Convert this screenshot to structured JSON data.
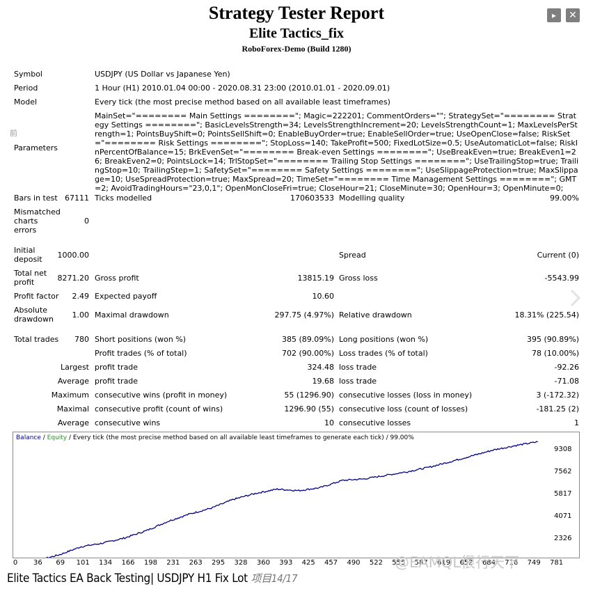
{
  "header": {
    "title": "Strategy Tester Report",
    "ea_name": "Elite Tactics_fix",
    "server": "RoboForex-Demo (Build 1280)"
  },
  "controls": {
    "play": "▸",
    "close": "✕"
  },
  "side_marks": {
    "left": "前"
  },
  "info": {
    "symbol_label": "Symbol",
    "symbol": "USDJPY (US Dollar vs Japanese Yen)",
    "period_label": "Period",
    "period": "1 Hour (H1) 2010.01.04 00:00 - 2020.08.31 23:00 (2010.01.01 - 2020.09.01)",
    "model_label": "Model",
    "model": "Every tick (the most precise method based on all available least timeframes)",
    "parameters_label": "Parameters",
    "parameters": "MainSet=\"======== Main Settings ========\"; Magic=222201; CommentOrders=\"\"; StrategySet=\"======== Strategy Settings ========\"; BasicLevelsStrength=34; LevelsStrengthIncrement=20; LevelsStrengthCount=1; MaxLevelsPerStrength=1; PointsBuyShift=0; PointsSellShift=0; EnableBuyOrder=true; EnableSellOrder=true; UseOpenClose=false; RiskSet=\"======== Risk Settings ========\"; StopLoss=140; TakeProfit=500; FixedLotSize=0.5; UseAutomaticLot=false; RiskInPercentOfBalance=15; BrkEvenSet=\"======== Break-even Settings ========\"; UseBreakEven=true; BreakEven1=26; BreakEven2=0; PointsLock=14; TrlStopSet=\"======== Trailing Stop Settings ========\"; UseTrailingStop=true; TrailingStop=10; TrailingStep=1; SafetySet=\"======== Safety Settings ========\"; UseSlippageProtection=true; MaxSlippage=10; UseSpreadProtection=true; MaxSpread=20; TimeSet=\"======== Time Management Settings ========\"; GMT=2; AvoidTradingHours=\"23,0,1\"; OpenMonCloseFri=true; CloseHour=21; CloseMinute=30; OpenHour=3; OpenMinute=0;"
  },
  "stats": {
    "bars_label": "Bars in test",
    "bars": "67111",
    "ticks_label": "Ticks modelled",
    "ticks": "170603533",
    "quality_label": "Modelling quality",
    "quality": "99.00%",
    "mismatch_label_1": "Mismatched",
    "mismatch_label_2": "charts",
    "mismatch_label_3": "errors",
    "mismatch": "0",
    "deposit_label_1": "Initial",
    "deposit_label_2": "deposit",
    "deposit": "1000.00",
    "spread_label": "Spread",
    "spread": "Current (0)",
    "net_label_1": "Total net",
    "net_label_2": "profit",
    "net": "8271.20",
    "gross_profit_label": "Gross profit",
    "gross_profit": "13815.19",
    "gross_loss_label": "Gross loss",
    "gross_loss": "-5543.99",
    "pf_label": "Profit factor",
    "pf": "2.49",
    "ep_label": "Expected payoff",
    "ep": "10.60",
    "abs_dd_label_1": "Absolute",
    "abs_dd_label_2": "drawdown",
    "abs_dd": "1.00",
    "max_dd_label": "Maximal drawdown",
    "max_dd": "297.75 (4.97%)",
    "rel_dd_label": "Relative drawdown",
    "rel_dd": "18.31% (225.54)",
    "total_trades_label": "Total trades",
    "total_trades": "780",
    "short_label": "Short positions (won %)",
    "short": "385 (89.09%)",
    "long_label": "Long positions (won %)",
    "long": "395 (90.89%)",
    "pt_label": "Profit trades (% of total)",
    "pt": "702 (90.00%)",
    "lt_label": "Loss trades (% of total)",
    "lt": "78 (10.00%)",
    "largest_label": "Largest",
    "profit_trade_label": "profit trade",
    "largest_profit": "324.48",
    "loss_trade_label": "loss trade",
    "largest_loss": "-92.26",
    "average_label": "Average",
    "average_profit": "19.68",
    "average_loss": "-71.08",
    "maximum_label": "Maximum",
    "cw_money_label": "consecutive wins (profit in money)",
    "cw_money": "55 (1296.90)",
    "cl_money_label": "consecutive losses (loss in money)",
    "cl_money": "3 (-172.32)",
    "maximal_label": "Maximal",
    "cp_count_label": "consecutive profit (count of wins)",
    "cp_count": "1296.90 (55)",
    "cl_count_label": "consecutive loss (count of losses)",
    "cl_count": "-181.25 (2)",
    "average2_label": "Average",
    "acw_label": "consecutive wins",
    "acw": "10",
    "acl_label": "consecutive losses",
    "acl": "1"
  },
  "chart_caption": {
    "balance": "Balance",
    "sep": " / ",
    "equity": "Equity",
    "rest": " / Every tick (the most precise method based on all available least timeframes to generate each tick) / 99.00%"
  },
  "chart_data": {
    "type": "line",
    "title": "",
    "x": [
      0,
      36,
      69,
      101,
      134,
      166,
      198,
      231,
      263,
      295,
      328,
      360,
      393,
      425,
      457,
      490,
      522,
      555,
      587,
      619,
      652,
      684,
      716,
      749,
      781
    ],
    "x_ticks": [
      "0",
      "36",
      "69",
      "101",
      "134",
      "166",
      "198",
      "231",
      "263",
      "295",
      "328",
      "360",
      "393",
      "425",
      "457",
      "490",
      "522",
      "555",
      "587",
      "619",
      "652",
      "684",
      "716",
      "749",
      "781"
    ],
    "y_ticks": [
      "9308",
      "7562",
      "5817",
      "4071",
      "2326"
    ],
    "ylim": [
      1300,
      9900
    ],
    "xlim": [
      0,
      800
    ],
    "series": [
      {
        "name": "Balance",
        "color": "#00008b",
        "values": [
          1000,
          1100,
          1500,
          2050,
          2300,
          2650,
          3150,
          3800,
          4300,
          4700,
          5300,
          5700,
          6000,
          5900,
          6100,
          6600,
          6700,
          6950,
          7200,
          7500,
          7900,
          8300,
          8700,
          9000,
          9250
        ]
      }
    ],
    "grid": false,
    "legend": "top-left"
  },
  "footer": {
    "main": "Elite Tactics EA Back Testing| USDJPY H1 Fix Lot",
    "sub": "项目14/17"
  },
  "watermark": "@EAMQL很行天下"
}
